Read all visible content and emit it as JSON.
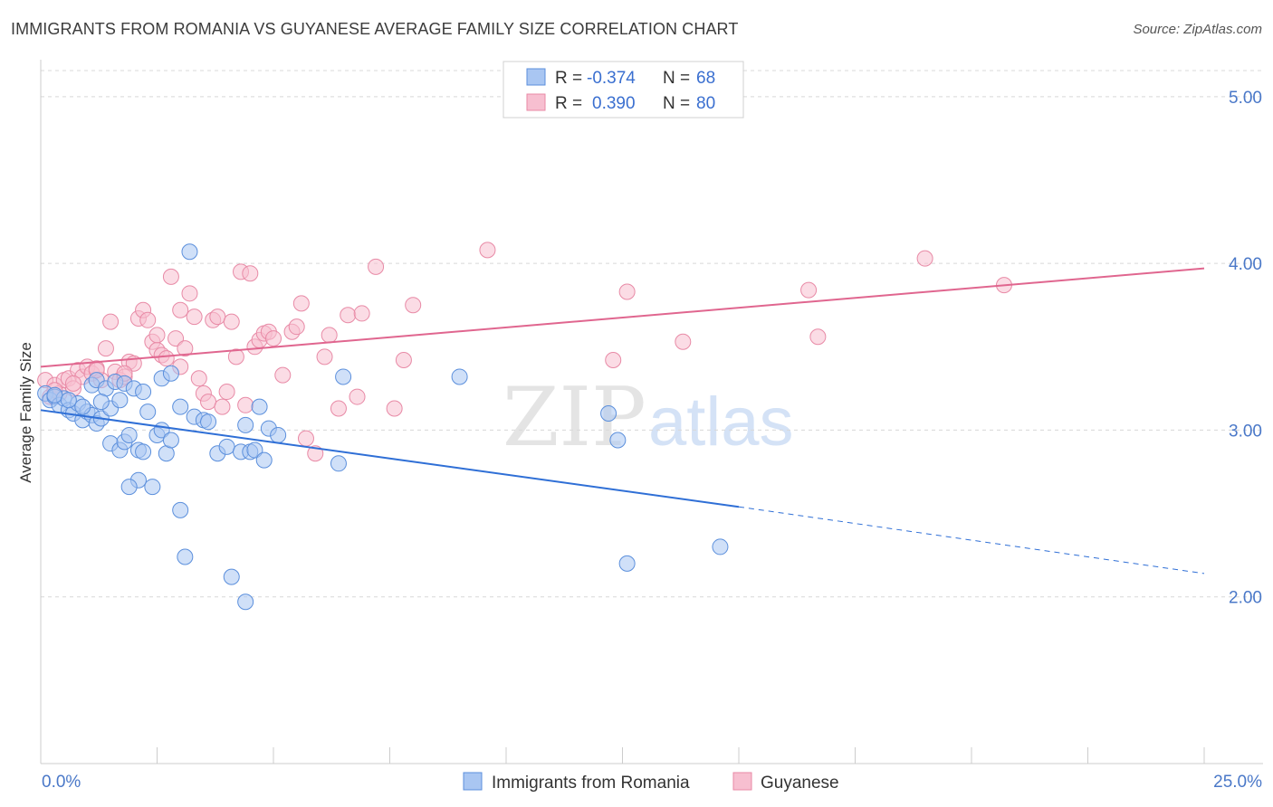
{
  "title": "IMMIGRANTS FROM ROMANIA VS GUYANESE AVERAGE FAMILY SIZE CORRELATION CHART",
  "source": "Source: ZipAtlas.com",
  "watermark": {
    "zip": "ZIP",
    "atlas": "atlas"
  },
  "colors": {
    "blue_fill": "#a9c6f2",
    "blue_stroke": "#5b8fdc",
    "blue_line": "#2f6fd6",
    "pink_fill": "#f7bfd0",
    "pink_stroke": "#e88aa6",
    "pink_line": "#e0668f",
    "grid": "#d8d8d8",
    "axis_text": "#4a78c8"
  },
  "legend": {
    "r_label": "R =",
    "n_label": "N =",
    "rows": [
      {
        "r": "-0.374",
        "n": "68"
      },
      {
        "r": "0.390",
        "n": "80"
      }
    ]
  },
  "chart_data": {
    "type": "scatter",
    "xlabel": "",
    "ylabel": "Average Family Size",
    "xlim": [
      0,
      25
    ],
    "ylim": [
      1.0,
      5.2
    ],
    "x_tick_labels": [
      "0.0%",
      "25.0%"
    ],
    "y_ticks": [
      2.0,
      3.0,
      4.0,
      5.0
    ],
    "y_tick_labels": [
      "2.00",
      "3.00",
      "4.00",
      "5.00"
    ],
    "grid": "horizontal dashed",
    "series": [
      {
        "name": "Immigrants from Romania",
        "color": "blue",
        "r": -0.374,
        "n": 68,
        "trend": {
          "x0": 0.0,
          "y0": 3.12,
          "x1": 15.0,
          "y1": 2.54,
          "dash_x1": 25.0,
          "dash_y1": 2.14
        },
        "points": [
          [
            0.1,
            3.22
          ],
          [
            0.2,
            3.18
          ],
          [
            0.3,
            3.2
          ],
          [
            0.4,
            3.15
          ],
          [
            0.5,
            3.19
          ],
          [
            0.6,
            3.12
          ],
          [
            0.7,
            3.1
          ],
          [
            0.8,
            3.16
          ],
          [
            0.9,
            3.06
          ],
          [
            1.0,
            3.11
          ],
          [
            1.1,
            3.09
          ],
          [
            1.2,
            3.04
          ],
          [
            1.3,
            3.07
          ],
          [
            1.1,
            3.27
          ],
          [
            1.2,
            3.3
          ],
          [
            1.4,
            3.25
          ],
          [
            1.5,
            3.13
          ],
          [
            1.6,
            3.29
          ],
          [
            1.7,
            3.18
          ],
          [
            1.8,
            3.28
          ],
          [
            1.5,
            2.92
          ],
          [
            1.7,
            2.88
          ],
          [
            1.8,
            2.93
          ],
          [
            1.9,
            2.97
          ],
          [
            2.0,
            3.25
          ],
          [
            2.1,
            2.88
          ],
          [
            2.2,
            3.23
          ],
          [
            2.1,
            2.7
          ],
          [
            1.9,
            2.66
          ],
          [
            2.3,
            3.11
          ],
          [
            2.2,
            2.87
          ],
          [
            2.4,
            2.66
          ],
          [
            2.5,
            2.97
          ],
          [
            2.6,
            3.0
          ],
          [
            2.7,
            2.86
          ],
          [
            2.6,
            3.31
          ],
          [
            2.8,
            3.34
          ],
          [
            2.8,
            2.94
          ],
          [
            3.0,
            3.14
          ],
          [
            3.0,
            2.52
          ],
          [
            3.1,
            2.24
          ],
          [
            3.2,
            4.07
          ],
          [
            3.3,
            3.08
          ],
          [
            3.5,
            3.06
          ],
          [
            3.6,
            3.05
          ],
          [
            3.8,
            2.86
          ],
          [
            4.0,
            2.9
          ],
          [
            4.1,
            2.12
          ],
          [
            4.3,
            2.87
          ],
          [
            4.4,
            3.03
          ],
          [
            4.5,
            2.87
          ],
          [
            4.6,
            2.88
          ],
          [
            4.7,
            3.14
          ],
          [
            4.8,
            2.82
          ],
          [
            4.9,
            3.01
          ],
          [
            5.1,
            2.97
          ],
          [
            4.4,
            1.97
          ],
          [
            6.4,
            2.8
          ],
          [
            6.5,
            3.32
          ],
          [
            9.0,
            3.32
          ],
          [
            12.2,
            3.1
          ],
          [
            12.4,
            2.94
          ],
          [
            12.6,
            2.2
          ],
          [
            14.6,
            2.3
          ],
          [
            0.3,
            3.21
          ],
          [
            0.6,
            3.18
          ],
          [
            0.9,
            3.14
          ],
          [
            1.3,
            3.17
          ]
        ]
      },
      {
        "name": "Guyanese",
        "color": "pink",
        "r": 0.39,
        "n": 80,
        "trend": {
          "x0": 0.0,
          "y0": 3.38,
          "x1": 25.0,
          "y1": 3.97
        },
        "points": [
          [
            0.1,
            3.3
          ],
          [
            0.2,
            3.2
          ],
          [
            0.3,
            3.27
          ],
          [
            0.4,
            3.22
          ],
          [
            0.5,
            3.3
          ],
          [
            0.6,
            3.31
          ],
          [
            0.7,
            3.25
          ],
          [
            0.8,
            3.36
          ],
          [
            0.9,
            3.32
          ],
          [
            1.0,
            3.38
          ],
          [
            1.1,
            3.34
          ],
          [
            1.2,
            3.37
          ],
          [
            1.3,
            3.3
          ],
          [
            1.4,
            3.49
          ],
          [
            1.5,
            3.65
          ],
          [
            1.6,
            3.35
          ],
          [
            1.7,
            3.3
          ],
          [
            1.8,
            3.32
          ],
          [
            1.9,
            3.41
          ],
          [
            2.0,
            3.4
          ],
          [
            2.1,
            3.67
          ],
          [
            2.2,
            3.72
          ],
          [
            2.3,
            3.66
          ],
          [
            2.4,
            3.53
          ],
          [
            2.5,
            3.48
          ],
          [
            2.6,
            3.45
          ],
          [
            2.7,
            3.43
          ],
          [
            2.8,
            3.92
          ],
          [
            2.9,
            3.55
          ],
          [
            3.0,
            3.72
          ],
          [
            3.1,
            3.49
          ],
          [
            3.2,
            3.82
          ],
          [
            3.3,
            3.68
          ],
          [
            3.4,
            3.31
          ],
          [
            3.5,
            3.22
          ],
          [
            3.6,
            3.17
          ],
          [
            3.7,
            3.66
          ],
          [
            3.8,
            3.68
          ],
          [
            3.9,
            3.14
          ],
          [
            4.0,
            3.23
          ],
          [
            4.1,
            3.65
          ],
          [
            4.2,
            3.44
          ],
          [
            4.3,
            3.95
          ],
          [
            4.4,
            3.15
          ],
          [
            4.5,
            3.94
          ],
          [
            4.6,
            3.5
          ],
          [
            4.7,
            3.54
          ],
          [
            4.8,
            3.58
          ],
          [
            4.9,
            3.59
          ],
          [
            5.0,
            3.55
          ],
          [
            5.2,
            3.33
          ],
          [
            5.4,
            3.59
          ],
          [
            5.5,
            3.62
          ],
          [
            5.6,
            3.76
          ],
          [
            5.7,
            2.95
          ],
          [
            5.9,
            2.86
          ],
          [
            6.1,
            3.44
          ],
          [
            6.2,
            3.57
          ],
          [
            6.4,
            3.13
          ],
          [
            6.6,
            3.69
          ],
          [
            6.8,
            3.2
          ],
          [
            6.9,
            3.7
          ],
          [
            7.2,
            3.98
          ],
          [
            7.6,
            3.13
          ],
          [
            7.8,
            3.42
          ],
          [
            8.0,
            3.75
          ],
          [
            9.6,
            4.08
          ],
          [
            12.3,
            3.42
          ],
          [
            12.6,
            3.83
          ],
          [
            13.8,
            3.53
          ],
          [
            16.5,
            3.84
          ],
          [
            16.7,
            3.56
          ],
          [
            19.0,
            4.03
          ],
          [
            20.7,
            3.87
          ],
          [
            0.3,
            3.24
          ],
          [
            0.7,
            3.28
          ],
          [
            1.2,
            3.36
          ],
          [
            1.8,
            3.34
          ],
          [
            2.5,
            3.57
          ],
          [
            3.0,
            3.38
          ]
        ]
      }
    ]
  }
}
